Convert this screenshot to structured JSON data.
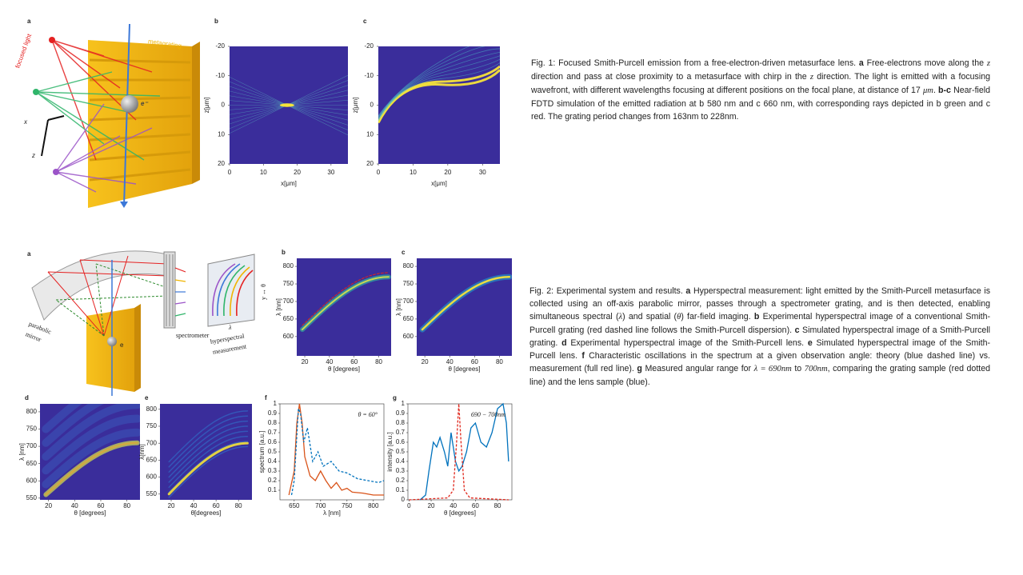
{
  "figure1": {
    "illustration": {
      "label": "a",
      "texts": [
        "focused light",
        "metagrating",
        "x",
        "z",
        "e⁻"
      ]
    },
    "panels": [
      {
        "label": "b",
        "kind": "heatmap",
        "xlabel": "x[μm]",
        "ylabel": "z[μm]",
        "xlim": [
          0,
          35
        ],
        "ylim": [
          -20,
          20
        ],
        "y_reversed": true,
        "xticks": [
          0,
          10,
          20,
          30
        ],
        "yticks": [
          -20,
          -10,
          0,
          10,
          20
        ]
      },
      {
        "label": "c",
        "kind": "heatmap",
        "xlabel": "x[μm]",
        "ylabel": "z[μm]",
        "xlim": [
          0,
          35
        ],
        "ylim": [
          -20,
          20
        ],
        "y_reversed": true,
        "xticks": [
          0,
          10,
          20,
          30
        ],
        "yticks": [
          -20,
          -10,
          0,
          10,
          20
        ]
      }
    ],
    "caption": [
      {
        "text": "Fig. 1: Focused Smith-Purcell emission from a free-electron-driven metasurface lens. "
      },
      {
        "text": "a",
        "style": "bold"
      },
      {
        "text": " Free-electrons move along the "
      },
      {
        "text": "z",
        "style": "italic"
      },
      {
        "text": " direction and pass at close proximity to a metasurface with chirp in the "
      },
      {
        "text": "z",
        "style": "italic"
      },
      {
        "text": " direction. The light is emitted with a focusing wavefront, with different wavelengths focusing at different positions on the focal plane, at distance of 17 "
      },
      {
        "text": "μm",
        "style": "italic"
      },
      {
        "text": ". "
      },
      {
        "text": "b-c",
        "style": "bold"
      },
      {
        "text": " Near-field FDTD simulation of the emitted radiation at b 580 nm and c 660 nm, with corresponding rays depicted in b green and c red. The grating period changes from 163nm to 228nm."
      }
    ]
  },
  "figure2": {
    "illustration": {
      "label": "a",
      "texts": [
        "parabolic",
        "mirror",
        "spectrometer",
        "hyperspectral",
        "measurement",
        "y ↔ θ",
        "λ",
        "e"
      ]
    },
    "panels": [
      {
        "label": "b",
        "kind": "heatmap",
        "xlabel": "θ [degrees]",
        "ylabel": "λ [nm]",
        "xlim": [
          13.5,
          90
        ],
        "ylim": [
          545,
          823
        ],
        "xticks": [
          20,
          40,
          60,
          80
        ],
        "yticks": [
          600,
          650,
          700,
          750,
          800
        ]
      },
      {
        "label": "c",
        "kind": "heatmap",
        "xlabel": "θ [degrees]",
        "ylabel": "λ [nm]",
        "xlim": [
          13.5,
          90
        ],
        "ylim": [
          545,
          823
        ],
        "xticks": [
          20,
          40,
          60,
          80
        ],
        "yticks": [
          600,
          650,
          700,
          750,
          800
        ]
      },
      {
        "label": "d",
        "kind": "heatmap",
        "xlabel": "θ [degrees]",
        "ylabel": "λ [nm]",
        "xlim": [
          13.5,
          90
        ],
        "ylim": [
          545,
          823
        ],
        "xticks": [
          20,
          40,
          60,
          80
        ],
        "yticks": [
          550,
          600,
          650,
          700,
          750,
          800
        ]
      },
      {
        "label": "e",
        "kind": "heatmap",
        "xlabel": "θ[degrees]",
        "ylabel": "λ[nm]",
        "xlim": [
          10,
          92
        ],
        "ylim": [
          533,
          816
        ],
        "xticks": [
          20,
          40,
          60,
          80
        ],
        "yticks": [
          550,
          600,
          650,
          700,
          750,
          800
        ]
      },
      {
        "label": "f",
        "kind": "line",
        "xlabel": "λ [nm]",
        "ylabel": "spectrum [a.u.]",
        "annotation": "θ = 60°",
        "xlim": [
          623,
          820
        ],
        "ylim": [
          0,
          1
        ],
        "xticks": [
          650,
          700,
          750,
          800
        ],
        "yticks": [
          0.1,
          0.2,
          0.3,
          0.4,
          0.5,
          0.6,
          0.7,
          0.8,
          0.9,
          1
        ],
        "series": [
          {
            "color": "#d95319",
            "dash": false,
            "x": [
              640,
              650,
              655,
              660,
              665,
              670,
              680,
              690,
              700,
              710,
              720,
              730,
              740,
              750,
              760,
              780,
              800,
              820
            ],
            "values": [
              0.05,
              0.3,
              0.8,
              1,
              0.8,
              0.45,
              0.25,
              0.2,
              0.3,
              0.2,
              0.12,
              0.18,
              0.1,
              0.12,
              0.08,
              0.07,
              0.05,
              0.05
            ]
          },
          {
            "color": "#0072bd",
            "dash": true,
            "x": [
              645,
              650,
              658,
              662,
              668,
              675,
              685,
              695,
              705,
              720,
              735,
              750,
              770,
              790,
              810,
              820
            ],
            "values": [
              0.05,
              0.2,
              0.95,
              0.9,
              0.6,
              0.75,
              0.4,
              0.5,
              0.35,
              0.4,
              0.3,
              0.28,
              0.22,
              0.2,
              0.18,
              0.2
            ]
          }
        ]
      },
      {
        "label": "g",
        "kind": "line",
        "xlabel": "θ [degrees]",
        "ylabel": "intensity [a.u.]",
        "annotation": "690 − 700nm",
        "xlim": [
          -1,
          93
        ],
        "ylim": [
          0,
          1
        ],
        "xticks": [
          0,
          20,
          40,
          60,
          80
        ],
        "yticks": [
          0,
          0.1,
          0.2,
          0.3,
          0.4,
          0.5,
          0.6,
          0.7,
          0.8,
          0.9,
          1
        ],
        "series": [
          {
            "color": "#0072bd",
            "dash": false,
            "x": [
              10,
              15,
              18,
              22,
              25,
              28,
              32,
              35,
              38,
              42,
              45,
              48,
              52,
              56,
              60,
              65,
              70,
              75,
              80,
              85,
              88,
              90
            ],
            "values": [
              0,
              0.05,
              0.3,
              0.6,
              0.55,
              0.65,
              0.5,
              0.35,
              0.7,
              0.4,
              0.3,
              0.35,
              0.5,
              0.75,
              0.8,
              0.6,
              0.55,
              0.7,
              0.95,
              1,
              0.8,
              0.4
            ]
          },
          {
            "color": "#e0261b",
            "dash": true,
            "x": [
              0,
              35,
              40,
              43,
              45,
              47,
              50,
              55,
              90
            ],
            "values": [
              0,
              0.02,
              0.1,
              0.6,
              1,
              0.6,
              0.1,
              0.02,
              0
            ]
          }
        ]
      }
    ],
    "caption": [
      {
        "text": "Fig. 2: Experimental system and results. "
      },
      {
        "text": "a",
        "style": "bold"
      },
      {
        "text": " Hyperspectral measurement: light emitted by the Smith-Purcell metasurface is collected using an off-axis parabolic mirror, passes through a spectrometer grating, and is then detected, enabling simultaneous spectral ("
      },
      {
        "text": "λ",
        "style": "italic"
      },
      {
        "text": ") and spatial ("
      },
      {
        "text": "θ",
        "style": "italic"
      },
      {
        "text": ") far-field imaging. "
      },
      {
        "text": "b",
        "style": "bold"
      },
      {
        "text": " Experimental hyperspectral image of a conventional Smith-Purcell grating (red dashed line follows the Smith-Purcell dispersion). "
      },
      {
        "text": "c",
        "style": "bold"
      },
      {
        "text": " Simulated hyperspectral image of a Smith-Purcell grating. "
      },
      {
        "text": "d",
        "style": "bold"
      },
      {
        "text": " Experimental hyperspectral image of the Smith-Purcell lens. "
      },
      {
        "text": "e",
        "style": "bold"
      },
      {
        "text": " Simulated hyperspectral image of the Smith-Purcell lens. "
      },
      {
        "text": "f",
        "style": "bold"
      },
      {
        "text": " Characteristic oscillations in the spectrum at a given observation angle: theory (blue dashed line) vs. measurement (full red line). "
      },
      {
        "text": "g",
        "style": "bold"
      },
      {
        "text": " Measured angular range for "
      },
      {
        "text": "λ = 690nm",
        "style": "italic"
      },
      {
        "text": " to "
      },
      {
        "text": "700nm",
        "style": "italic"
      },
      {
        "text": ", comparing the grating sample (red dotted  line) and the  lens sample (blue)."
      }
    ]
  }
}
